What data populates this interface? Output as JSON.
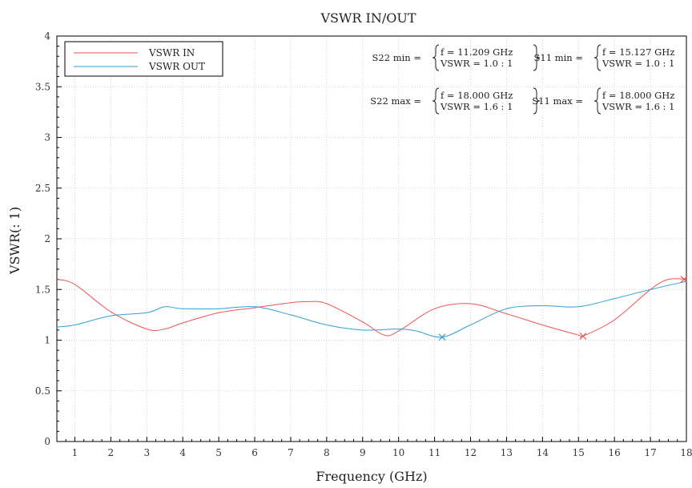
{
  "chart_data": {
    "type": "line",
    "title": "VSWR IN/OUT",
    "xlabel": "Frequency (GHz)",
    "ylabel": "VSWR(: 1)",
    "xlim": [
      0.5,
      18
    ],
    "ylim": [
      0,
      4
    ],
    "x_ticks": [
      "1",
      "2",
      "3",
      "4",
      "5",
      "6",
      "7",
      "8",
      "9",
      "10",
      "11",
      "12",
      "13",
      "14",
      "15",
      "16",
      "17",
      "18"
    ],
    "y_ticks": [
      "0",
      "0.5",
      "1",
      "1.5",
      "2",
      "2.5",
      "3",
      "3.5",
      "4"
    ],
    "grid": true,
    "legend_position": "top-left",
    "series": [
      {
        "name": "VSWR IN",
        "color": "#ee5555",
        "x": [
          0.5,
          1,
          2,
          3,
          3.5,
          4,
          5,
          6,
          7,
          7.5,
          8,
          9,
          9.6,
          10,
          11,
          12,
          13,
          14,
          15,
          15.127,
          16,
          17,
          17.5,
          18
        ],
        "values": [
          1.6,
          1.55,
          1.28,
          1.11,
          1.11,
          1.17,
          1.27,
          1.32,
          1.37,
          1.38,
          1.36,
          1.18,
          1.05,
          1.09,
          1.31,
          1.36,
          1.26,
          1.15,
          1.05,
          1.04,
          1.2,
          1.5,
          1.6,
          1.6
        ],
        "marker": {
          "x": 15.127,
          "y": 1.04
        }
      },
      {
        "name": "VSWR OUT",
        "color": "#2ea0d6",
        "x": [
          0.5,
          1,
          2,
          3,
          3.5,
          4,
          5,
          6,
          7,
          8,
          9,
          10,
          10.5,
          11.209,
          12,
          13,
          14,
          15,
          16,
          17,
          18
        ],
        "values": [
          1.13,
          1.15,
          1.24,
          1.27,
          1.33,
          1.31,
          1.31,
          1.33,
          1.25,
          1.15,
          1.1,
          1.11,
          1.09,
          1.03,
          1.15,
          1.31,
          1.34,
          1.33,
          1.41,
          1.5,
          1.58
        ],
        "marker": {
          "x": 11.209,
          "y": 1.03
        }
      }
    ],
    "annotations": [
      {
        "label": "S22 min =",
        "line1": "f = 11.209 GHz",
        "line2": "VSWR = 1.0 : 1"
      },
      {
        "label": "S11 min =",
        "line1": "f = 15.127 GHz",
        "line2": "VSWR = 1.0 : 1"
      },
      {
        "label": "S22 max =",
        "line1": "f = 18.000 GHz",
        "line2": "VSWR = 1.6 : 1"
      },
      {
        "label": "S11 max =",
        "line1": "f = 18.000 GHz",
        "line2": "VSWR = 1.6 : 1"
      }
    ]
  }
}
